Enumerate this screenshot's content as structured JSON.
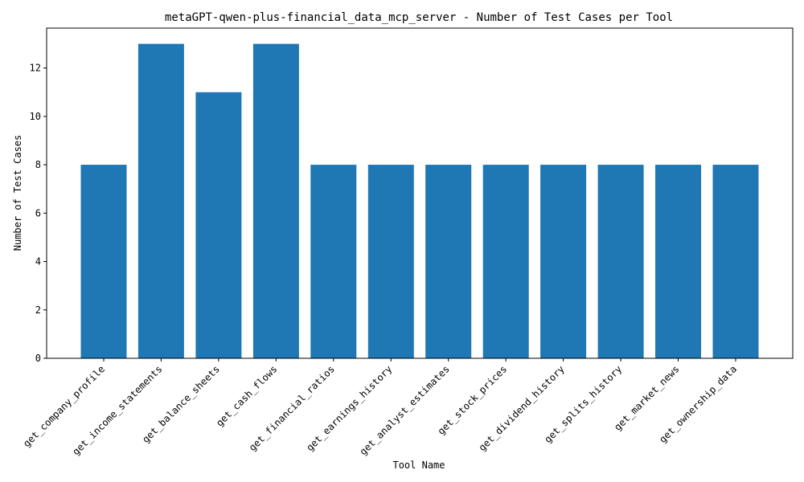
{
  "chart_data": {
    "type": "bar",
    "title": "metaGPT-qwen-plus-financial_data_mcp_server - Number of Test Cases per Tool",
    "xlabel": "Tool Name",
    "ylabel": "Number of Test Cases",
    "categories": [
      "get_company_profile",
      "get_income_statements",
      "get_balance_sheets",
      "get_cash_flows",
      "get_financial_ratios",
      "get_earnings_history",
      "get_analyst_estimates",
      "get_stock_prices",
      "get_dividend_history",
      "get_splits_history",
      "get_market_news",
      "get_ownership_data"
    ],
    "values": [
      8,
      13,
      11,
      13,
      8,
      8,
      8,
      8,
      8,
      8,
      8,
      8
    ],
    "ylim": [
      0,
      13.65
    ],
    "yticks": [
      "0",
      "2",
      "4",
      "6",
      "8",
      "10",
      "12"
    ],
    "bar_color": "#1f77b4",
    "grid": false,
    "legend": "none"
  }
}
